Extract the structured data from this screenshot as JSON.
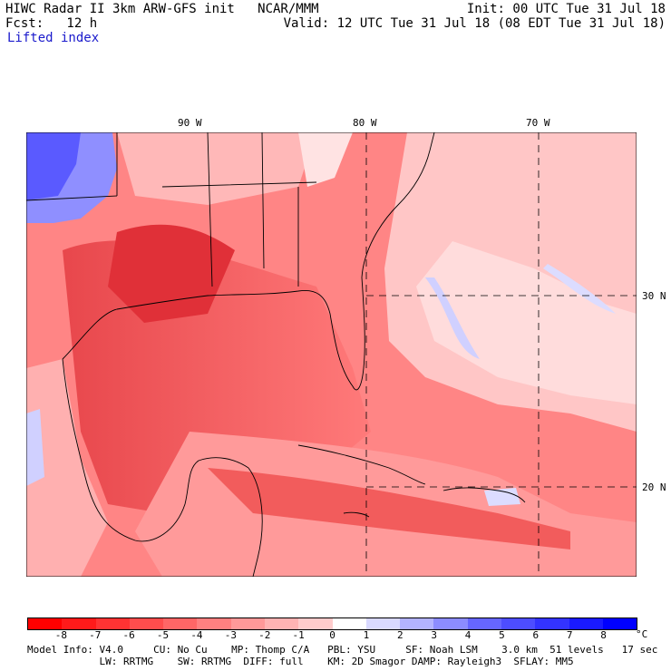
{
  "header": {
    "line1_left": "HIWC Radar II 3km ARW-GFS init   NCAR/MMM",
    "line1_right": "Init: 00 UTC Tue 31 Jul 18",
    "line2_left": "Fcst:   12 h",
    "line2_right": "Valid: 12 UTC Tue 31 Jul 18 (08 EDT Tue 31 Jul 18)",
    "field_name": "Lifted index"
  },
  "map": {
    "lon_labels": [
      "90 W",
      "80 W",
      "70 W"
    ],
    "lat_labels": [
      "30 N",
      "20 N"
    ]
  },
  "colorbar": {
    "tick_labels": [
      "-8",
      "-7",
      "-6",
      "-5",
      "-4",
      "-3",
      "-2",
      "-1",
      "0",
      "1",
      "2",
      "3",
      "4",
      "5",
      "6",
      "7",
      "8"
    ],
    "unit": "°C",
    "colors": [
      "#ff0000",
      "#ff1a1a",
      "#ff3333",
      "#ff4d4d",
      "#ff6666",
      "#ff8080",
      "#ff9999",
      "#ffb3b3",
      "#ffcccc",
      "#ffffff",
      "#d9d9ff",
      "#b3b3ff",
      "#8c8cff",
      "#6666ff",
      "#4d4dff",
      "#3333ff",
      "#1a1aff",
      "#0000ff"
    ]
  },
  "footer": {
    "line1": "Model Info: V4.0     CU: No Cu    MP: Thomp C/A   PBL: YSU     SF: Noah LSM    3.0 km  51 levels   17 sec",
    "line2": "            LW: RRTMG    SW: RRTMG  DIFF: full    KM: 2D Smagor DAMP: Rayleigh3  SFLAY: MM5"
  }
}
